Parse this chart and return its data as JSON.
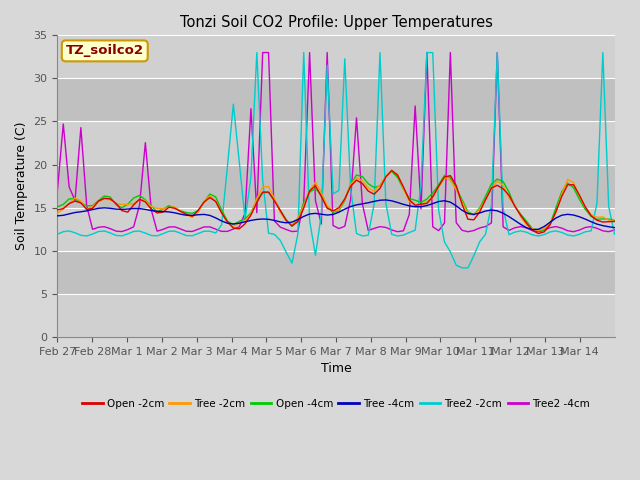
{
  "title": "Tonzi Soil CO2 Profile: Upper Temperatures",
  "xlabel": "Time",
  "ylabel": "Soil Temperature (C)",
  "watermark": "TZ_soilco2",
  "ylim": [
    0,
    35
  ],
  "yticks": [
    0,
    5,
    10,
    15,
    20,
    25,
    30,
    35
  ],
  "x_tick_labels": [
    "Feb 27",
    "Feb 28",
    "Mar 1",
    "Mar 2",
    "Mar 3",
    "Mar 4",
    "Mar 5",
    "Mar 6",
    "Mar 7",
    "Mar 8",
    "Mar 9",
    "Mar 10",
    "Mar 11",
    "Mar 12",
    "Mar 13",
    "Mar 14"
  ],
  "bg_light": "#dcdcdc",
  "bg_dark": "#c8c8c8",
  "grid_color": "#ffffff",
  "series": [
    {
      "label": "Open -2cm",
      "color": "#dd0000"
    },
    {
      "label": "Tree -2cm",
      "color": "#ff9900"
    },
    {
      "label": "Open -4cm",
      "color": "#00cc00"
    },
    {
      "label": "Tree -4cm",
      "color": "#0000bb"
    },
    {
      "label": "Tree2 -2cm",
      "color": "#00cccc"
    },
    {
      "label": "Tree2 -4cm",
      "color": "#cc00cc"
    }
  ]
}
